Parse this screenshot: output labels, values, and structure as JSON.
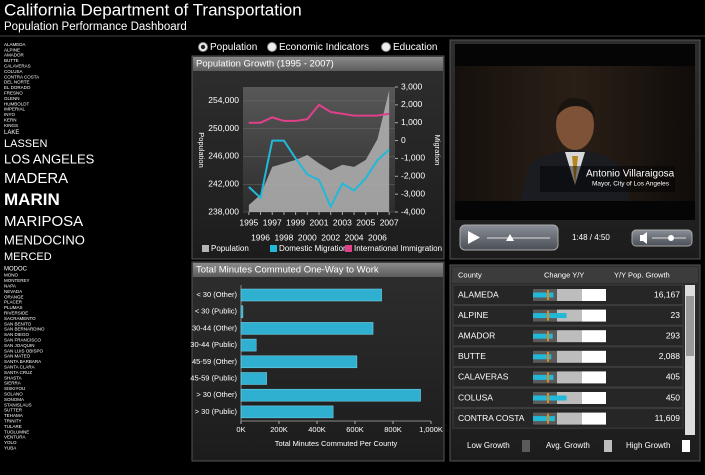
{
  "header": {
    "title": "California Department of Transportation",
    "subtitle": "Population Performance Dashboard"
  },
  "counties": [
    "ALAMEDA",
    "ALPINE",
    "AMADOR",
    "BUTTE",
    "CALAVERAS",
    "COLUSA",
    "CONTRA COSTA",
    "DEL NORTE",
    "EL DORADO",
    "FRESNO",
    "GLENN",
    "HUMBOLDT",
    "IMPERIAL",
    "INYO",
    "KERN",
    "KINGS",
    "LAKE",
    "LASSEN",
    "LOS ANGELES",
    "MADERA",
    "MARIN",
    "MARIPOSA",
    "MENDOCINO",
    "MERCED",
    "MODOC",
    "MONO",
    "MONTEREY",
    "NAPA",
    "NEVADA",
    "ORANGE",
    "PLACER",
    "PLUMAS",
    "RIVERSIDE",
    "SACRAMENTO",
    "SAN BENITO",
    "SAN BERNARDINO",
    "SAN DIEGO",
    "SAN FRANCISCO",
    "SAN JOAQUIN",
    "SAN LUIS OBISPO",
    "SAN MATEO",
    "SANTA BARBARA",
    "SANTA CLARA",
    "SANTA CRUZ",
    "SHASTA",
    "SIERRA",
    "SISKIYOU",
    "SOLANO",
    "SONOMA",
    "STANISLAUS",
    "SUTTER",
    "TEHAMA",
    "TRINITY",
    "TULARE",
    "TUOLUMNE",
    "VENTURA",
    "YOLO",
    "YUBA"
  ],
  "selected_county": 20,
  "view_options": [
    "Population",
    "Economic Indicators",
    "Education"
  ],
  "selected_view": 0,
  "chart_data": [
    {
      "type": "area_line",
      "title": "Population Growth (1995 - 2007)",
      "x": [
        1995,
        1996,
        1997,
        1998,
        1999,
        2000,
        2001,
        2002,
        2003,
        2004,
        2005,
        2006,
        2007
      ],
      "xlim": [
        1994.5,
        2007.5
      ],
      "xticks": [
        1995,
        1996,
        1997,
        1998,
        1999,
        2000,
        2001,
        2002,
        2003,
        2004,
        2005,
        2006,
        2007
      ],
      "ylabel": "Population",
      "y2label": "Migration",
      "ylim": [
        238000,
        256000
      ],
      "yticks": [
        {
          "value": 238000,
          "label": "238,000"
        },
        {
          "value": 242000,
          "label": "242,000"
        },
        {
          "value": 246000,
          "label": "246,000"
        },
        {
          "value": 250000,
          "label": "250,000"
        },
        {
          "value": 254000,
          "label": "254,000"
        }
      ],
      "y2lim": [
        -4000,
        3000
      ],
      "y2ticks": [
        {
          "value": 3000,
          "label": "3,000"
        },
        {
          "value": 2000,
          "label": "2,000"
        },
        {
          "value": 1000,
          "label": "1,000"
        },
        0,
        {
          "value": -1000,
          "label": "-1,000"
        },
        {
          "value": -2000,
          "label": "-2,000"
        },
        {
          "value": -3000,
          "label": "-3,000"
        },
        {
          "value": -4000,
          "label": "-4,000"
        }
      ],
      "grid": true,
      "series": [
        {
          "name": "Population",
          "color": "#b4b4b4",
          "mark": "area",
          "values": [
            239000,
            240500,
            244500,
            245000,
            245500,
            246200,
            245000,
            244000,
            244800,
            244500,
            245500,
            248500,
            255500
          ]
        },
        {
          "name": "Domestic Migration",
          "color": "#22b8d8",
          "mark": "line",
          "axis": "y2",
          "values": [
            -2600,
            -3200,
            0,
            0,
            -1000,
            -1900,
            -2200,
            -3700,
            -2400,
            -2800,
            -2100,
            -1100,
            -500
          ]
        },
        {
          "name": "International Immigration",
          "color": "#e0408a",
          "mark": "line",
          "axis": "y2",
          "values": [
            1000,
            1000,
            1300,
            1100,
            1100,
            1200,
            2000,
            1600,
            1500,
            1400,
            1400,
            1400,
            1500
          ]
        }
      ]
    },
    {
      "type": "hbar",
      "title": "Total Minutes Commuted One-Way to Work",
      "categories": [
        "< 30 (Other)",
        "< 30 (Public)",
        "30-44 (Other)",
        "30-44 (Public)",
        "45-59 (Other)",
        "45-59 (Public)",
        "> 30 (Other)",
        "> 30 (Public)"
      ],
      "values": [
        740000,
        10000,
        695000,
        80000,
        610000,
        135000,
        945000,
        485000
      ],
      "color": "#2fb0d0",
      "xlim": [
        0,
        1000000
      ],
      "xticks": [
        {
          "value": 0,
          "label": "0K"
        },
        {
          "value": 200000,
          "label": "200K"
        },
        {
          "value": 400000,
          "label": "400K"
        },
        {
          "value": 600000,
          "label": "600K"
        },
        {
          "value": 800000,
          "label": "800K"
        },
        {
          "value": 1000000,
          "label": "1,000K"
        }
      ],
      "xlabel": "Total Minutes Commuted Per County"
    }
  ],
  "video": {
    "name": "Antonio Villaraigosa",
    "role": "Mayor, City of Los Angeles",
    "time": "1:48 / 4:50"
  },
  "county_table": {
    "headers": [
      "County",
      "Change Y/Y",
      "Y/Y Pop. Growth"
    ],
    "rows": [
      [
        "ALAMEDA",
        "16,167"
      ],
      [
        "ALPINE",
        "23"
      ],
      [
        "AMADOR",
        "293"
      ],
      [
        "BUTTE",
        "2,088"
      ],
      [
        "CALAVERAS",
        "405"
      ],
      [
        "COLUSA",
        "450"
      ],
      [
        "CONTRA COSTA",
        "11,609"
      ]
    ],
    "change_yy": [
      28,
      46,
      27,
      25,
      28,
      46,
      30
    ],
    "change_lim": [
      0,
      100
    ],
    "legend": [
      "Low Growth",
      "Avg. Growth",
      "High Growth"
    ]
  }
}
